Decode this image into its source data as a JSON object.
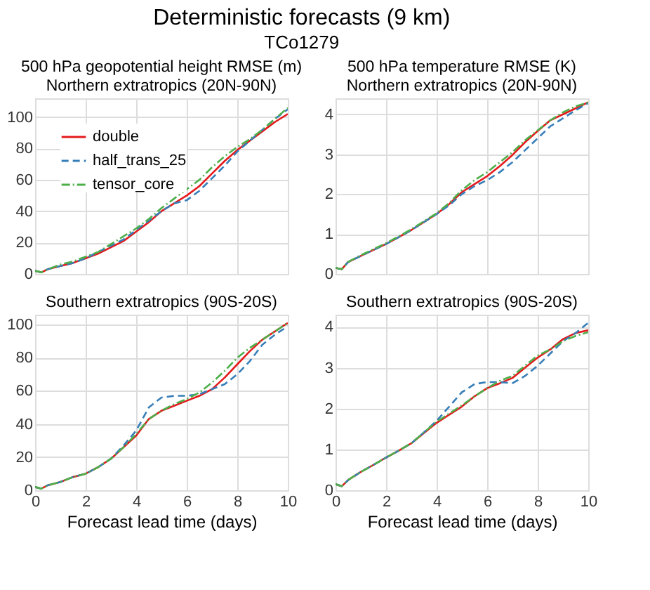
{
  "chart_data": [
    {
      "type": "line",
      "title": "500 hPa geopotential height RMSE (m)\nNorthern extratropics (20N-90N)",
      "annotations": [
        "Deterministic forecasts (9 km)",
        "TCo1279"
      ],
      "x": [
        0,
        0.25,
        0.5,
        1,
        1.5,
        2,
        2.5,
        3,
        3.5,
        4,
        4.5,
        5,
        5.5,
        6,
        6.5,
        7,
        7.5,
        8,
        8.5,
        9,
        9.5,
        10
      ],
      "series": [
        {
          "name": "double",
          "color": "#e41a1c",
          "line_style": "solid",
          "values": [
            2,
            1,
            3,
            5,
            7,
            10,
            13,
            17,
            21,
            27,
            33,
            40,
            45,
            50,
            56,
            64,
            72,
            79,
            85,
            91,
            97,
            102
          ]
        },
        {
          "name": "half_trans_25",
          "color": "#377eb8",
          "line_style": "dashed",
          "values": [
            2,
            1,
            3,
            5,
            7,
            10,
            14,
            18,
            22,
            28,
            34,
            40,
            45,
            47,
            53,
            61,
            69,
            78,
            85,
            92,
            99,
            105
          ]
        },
        {
          "name": "tensor_core",
          "color": "#4daf4a",
          "line_style": "dashdot",
          "values": [
            2,
            1,
            3,
            6,
            8,
            11,
            14,
            19,
            24,
            29,
            35,
            42,
            48,
            54,
            60,
            68,
            75,
            81,
            86,
            92,
            99,
            106
          ]
        }
      ],
      "xlim": [
        0,
        10
      ],
      "xticks": [
        0,
        2,
        4,
        6,
        8,
        10
      ],
      "ylim": [
        0,
        112
      ],
      "yticks": [
        0,
        20,
        40,
        60,
        80,
        100
      ],
      "grid": true,
      "legend": "top left",
      "tick_labels": "y"
    },
    {
      "type": "line",
      "title": "500 hPa temperature RMSE (K)\nNorthern extratropics (20N-90N)",
      "x": [
        0,
        0.25,
        0.5,
        1,
        1.5,
        2,
        2.5,
        3,
        3.5,
        4,
        4.5,
        5,
        5.5,
        6,
        6.5,
        7,
        7.5,
        8,
        8.5,
        9,
        9.5,
        10
      ],
      "series": [
        {
          "color": "#e41a1c",
          "line_style": "solid",
          "values": [
            0.15,
            0.12,
            0.3,
            0.45,
            0.6,
            0.75,
            0.92,
            1.1,
            1.3,
            1.5,
            1.75,
            2.05,
            2.25,
            2.45,
            2.7,
            2.98,
            3.3,
            3.58,
            3.85,
            4.0,
            4.15,
            4.3
          ]
        },
        {
          "color": "#377eb8",
          "line_style": "dashed",
          "values": [
            0.15,
            0.12,
            0.3,
            0.45,
            0.6,
            0.75,
            0.92,
            1.1,
            1.3,
            1.5,
            1.72,
            2.0,
            2.2,
            2.35,
            2.55,
            2.8,
            3.1,
            3.4,
            3.7,
            3.9,
            4.1,
            4.28
          ]
        },
        {
          "color": "#4daf4a",
          "line_style": "dashdot",
          "values": [
            0.15,
            0.12,
            0.3,
            0.47,
            0.62,
            0.77,
            0.94,
            1.12,
            1.32,
            1.52,
            1.78,
            2.1,
            2.35,
            2.55,
            2.8,
            3.05,
            3.35,
            3.6,
            3.85,
            4.05,
            4.2,
            4.3
          ]
        }
      ],
      "xlim": [
        0,
        10
      ],
      "xticks": [
        0,
        2,
        4,
        6,
        8,
        10
      ],
      "ylim": [
        0,
        4.4
      ],
      "yticks": [
        0,
        1,
        2,
        3,
        4
      ],
      "grid": true,
      "tick_labels": "y"
    },
    {
      "type": "line",
      "title": "Southern extratropics (90S-20S)",
      "xlabel": "Forecast lead time (days)",
      "x": [
        0,
        0.25,
        0.5,
        1,
        1.5,
        2,
        2.5,
        3,
        3.5,
        4,
        4.5,
        5,
        5.5,
        6,
        6.5,
        7,
        7.5,
        8,
        8.5,
        9,
        9.5,
        10
      ],
      "series": [
        {
          "color": "#e41a1c",
          "line_style": "solid",
          "values": [
            2,
            1,
            3,
            5,
            8,
            10,
            14,
            19,
            26,
            33,
            43,
            48,
            51,
            54,
            57,
            61,
            68,
            76,
            84,
            91,
            96,
            101
          ]
        },
        {
          "color": "#377eb8",
          "line_style": "dashed",
          "values": [
            2,
            1,
            3,
            5,
            8,
            10,
            14,
            19,
            27,
            36,
            50,
            56,
            57,
            57,
            58,
            61,
            64,
            70,
            78,
            88,
            94,
            99
          ]
        },
        {
          "color": "#4daf4a",
          "line_style": "dashdot",
          "values": [
            2,
            1,
            3,
            5,
            8,
            10,
            14,
            19,
            26,
            34,
            43,
            48,
            52,
            55,
            59,
            65,
            72,
            80,
            86,
            91,
            96,
            101
          ]
        }
      ],
      "xlim": [
        0,
        10
      ],
      "xticks": [
        0,
        2,
        4,
        6,
        8,
        10
      ],
      "ylim": [
        0,
        106
      ],
      "yticks": [
        0,
        20,
        40,
        60,
        80,
        100
      ],
      "grid": true
    },
    {
      "type": "line",
      "title": "Southern extratropics (90S-20S)",
      "xlabel": "Forecast lead time (days)",
      "x": [
        0,
        0.25,
        0.5,
        1,
        1.5,
        2,
        2.5,
        3,
        3.5,
        4,
        4.5,
        5,
        5.5,
        6,
        6.5,
        7,
        7.5,
        8,
        8.5,
        9,
        9.5,
        10
      ],
      "series": [
        {
          "color": "#e41a1c",
          "line_style": "solid",
          "values": [
            0.15,
            0.1,
            0.25,
            0.45,
            0.62,
            0.8,
            0.97,
            1.15,
            1.4,
            1.65,
            1.85,
            2.05,
            2.3,
            2.5,
            2.62,
            2.75,
            3.0,
            3.25,
            3.45,
            3.7,
            3.85,
            3.92
          ]
        },
        {
          "color": "#377eb8",
          "line_style": "dashed",
          "values": [
            0.15,
            0.1,
            0.25,
            0.45,
            0.62,
            0.8,
            0.97,
            1.15,
            1.42,
            1.7,
            2.05,
            2.4,
            2.6,
            2.65,
            2.65,
            2.62,
            2.8,
            3.05,
            3.35,
            3.65,
            3.85,
            4.1
          ]
        },
        {
          "color": "#4daf4a",
          "line_style": "dashdot",
          "values": [
            0.15,
            0.1,
            0.25,
            0.45,
            0.62,
            0.8,
            0.97,
            1.15,
            1.42,
            1.68,
            1.88,
            2.08,
            2.3,
            2.5,
            2.68,
            2.8,
            3.05,
            3.3,
            3.45,
            3.65,
            3.78,
            3.87
          ]
        }
      ],
      "xlim": [
        0,
        10
      ],
      "xticks": [
        0,
        2,
        4,
        6,
        8,
        10
      ],
      "ylim": [
        0,
        4.3
      ],
      "yticks": [
        0,
        1,
        2,
        3,
        4
      ],
      "grid": true
    }
  ]
}
